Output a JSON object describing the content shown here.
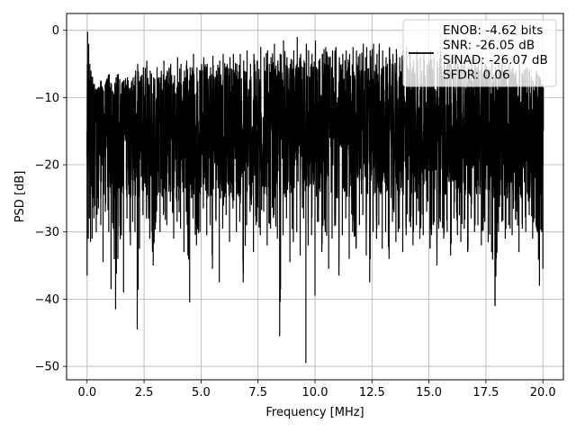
{
  "chart_data": {
    "type": "line",
    "title": "",
    "xlabel": "Frequency [MHz]",
    "ylabel": "PSD [dB]",
    "xlim": [
      -0.9,
      20.9
    ],
    "ylim": [
      -52,
      2.5
    ],
    "xticks": [
      0.0,
      2.5,
      5.0,
      7.5,
      10.0,
      12.5,
      15.0,
      17.5,
      20.0
    ],
    "xtick_labels": [
      "0.0",
      "2.5",
      "5.0",
      "7.5",
      "10.0",
      "12.5",
      "15.0",
      "17.5",
      "20.0"
    ],
    "yticks": [
      0,
      -10,
      -20,
      -30,
      -40,
      -50
    ],
    "ytick_labels": [
      "0",
      "−10",
      "−20",
      "−30",
      "−40",
      "−50"
    ],
    "grid": true,
    "legend_position": "top-right",
    "legend_entries": [
      "ENOB: -4.62 bits",
      "SNR: -26.05 dB",
      "SINAD: -26.07 dB",
      "SFDR: 0.06"
    ],
    "series": [
      {
        "color": "#000000",
        "x_range": [
          0.0,
          20.0
        ],
        "typical_range": [
          -25,
          -5
        ],
        "x": [
          0.0,
          0.05,
          0.1,
          0.15,
          0.22,
          0.3,
          0.4,
          0.5,
          0.6,
          0.7,
          0.8,
          0.95,
          1.05,
          1.15,
          1.25,
          1.35,
          1.5,
          1.6,
          1.75,
          1.9,
          2.0,
          2.1,
          2.2,
          2.3,
          2.45,
          2.6,
          2.75,
          2.9,
          3.05,
          3.2,
          3.35,
          3.5,
          3.65,
          3.8,
          3.95,
          4.1,
          4.25,
          4.35,
          4.5,
          4.65,
          4.8,
          4.95,
          5.1,
          5.25,
          5.4,
          5.5,
          5.65,
          5.8,
          5.95,
          6.1,
          6.25,
          6.4,
          6.55,
          6.7,
          6.85,
          7.0,
          7.15,
          7.3,
          7.45,
          7.6,
          7.75,
          7.9,
          8.05,
          8.2,
          8.35,
          8.45,
          8.6,
          8.75,
          8.9,
          9.05,
          9.2,
          9.35,
          9.5,
          9.6,
          9.7,
          9.85,
          10.0,
          10.15,
          10.3,
          10.45,
          10.6,
          10.75,
          10.9,
          11.05,
          11.2,
          11.35,
          11.5,
          11.65,
          11.8,
          11.95,
          12.1,
          12.25,
          12.4,
          12.55,
          12.7,
          12.8,
          12.95,
          13.1,
          13.25,
          13.4,
          13.55,
          13.7,
          13.85,
          14.0,
          14.15,
          14.3,
          14.45,
          14.6,
          14.75,
          14.9,
          15.05,
          15.2,
          15.35,
          15.5,
          15.65,
          15.8,
          15.95,
          16.1,
          16.25,
          16.4,
          16.55,
          16.7,
          16.85,
          17.0,
          17.15,
          17.3,
          17.45,
          17.6,
          17.75,
          17.9,
          18.05,
          18.2,
          18.35,
          18.5,
          18.65,
          18.8,
          18.95,
          19.1,
          19.25,
          19.4,
          19.55,
          19.7,
          19.85,
          19.95,
          20.0
        ],
        "y_max": [
          -0.2,
          -2.0,
          -5.0,
          -6.0,
          -7.0,
          -8.0,
          -9.0,
          -8.5,
          -7.5,
          -9.0,
          -8.0,
          -6.5,
          -8.0,
          -9.5,
          -7.0,
          -6.5,
          -8.0,
          -7.5,
          -7.0,
          -8.5,
          -7.0,
          -6.5,
          -5.0,
          -7.5,
          -5.5,
          -4.5,
          -6.0,
          -7.0,
          -5.5,
          -7.0,
          -4.5,
          -6.0,
          -5.0,
          -7.5,
          -4.0,
          -5.0,
          -6.0,
          -4.5,
          -5.5,
          -3.5,
          -5.5,
          -6.0,
          -4.0,
          -5.0,
          -5.5,
          -3.8,
          -6.0,
          -4.5,
          -3.5,
          -5.5,
          -4.0,
          -3.5,
          -5.0,
          -3.5,
          -4.5,
          -3.0,
          -5.0,
          -3.5,
          -4.5,
          -2.5,
          -4.0,
          -3.0,
          -4.0,
          -2.0,
          -4.5,
          -3.5,
          -1.5,
          -4.0,
          -5.0,
          -3.0,
          -1.0,
          -3.5,
          -4.5,
          -2.0,
          -3.0,
          -3.5,
          -1.5,
          -4.5,
          -3.5,
          -2.5,
          -4.0,
          -3.0,
          -2.5,
          -4.0,
          -3.5,
          -3.0,
          -3.5,
          -2.5,
          -3.0,
          -3.5,
          -2.0,
          -2.5,
          -3.0,
          -2.0,
          -3.5,
          -2.0,
          -3.0,
          -4.0,
          -2.5,
          -3.5,
          -2.8,
          -4.0,
          -3.0,
          -2.5,
          -3.5,
          -4.5,
          -3.0,
          -4.0,
          -3.5,
          -5.5,
          -3.0,
          -4.0,
          -4.5,
          -3.0,
          -4.5,
          -5.0,
          -4.0,
          -3.5,
          -5.0,
          -4.0,
          -4.5,
          -5.5,
          -4.0,
          -5.0,
          -4.5,
          -4.0,
          -5.0,
          -6.0,
          -4.5,
          -5.5,
          -5.0,
          -4.5,
          -6.5,
          -5.0,
          -5.5,
          -6.0,
          -5.0,
          -6.5,
          -5.5,
          -6.0,
          -7.5,
          -6.0,
          -7.0,
          -8.0,
          -8.5
        ],
        "y_min": [
          -36.5,
          -31.0,
          -28.0,
          -31.5,
          -31.0,
          -28.0,
          -30.0,
          -26.5,
          -29.0,
          -34.5,
          -27.0,
          -30.0,
          -38.5,
          -29.5,
          -41.5,
          -34.0,
          -30.5,
          -39.0,
          -28.0,
          -32.0,
          -28.5,
          -30.0,
          -44.5,
          -32.5,
          -27.5,
          -28.0,
          -31.0,
          -35.0,
          -27.0,
          -30.0,
          -27.5,
          -29.0,
          -25.5,
          -31.0,
          -28.5,
          -29.5,
          -33.0,
          -27.0,
          -40.5,
          -28.0,
          -32.0,
          -30.0,
          -26.5,
          -30.5,
          -29.0,
          -35.5,
          -28.0,
          -37.5,
          -29.5,
          -27.5,
          -31.5,
          -26.5,
          -30.0,
          -28.5,
          -37.5,
          -29.0,
          -27.0,
          -33.0,
          -28.5,
          -30.5,
          -27.0,
          -32.0,
          -29.5,
          -27.5,
          -31.0,
          -45.5,
          -30.5,
          -28.0,
          -34.5,
          -31.5,
          -30.0,
          -33.5,
          -28.0,
          -49.5,
          -32.0,
          -30.5,
          -39.5,
          -28.5,
          -33.0,
          -30.0,
          -35.5,
          -31.0,
          -29.0,
          -36.5,
          -30.5,
          -28.0,
          -34.0,
          -30.0,
          -32.5,
          -29.0,
          -27.5,
          -33.5,
          -37.5,
          -30.0,
          -31.0,
          -29.0,
          -32.5,
          -30.0,
          -34.0,
          -28.5,
          -31.5,
          -29.5,
          -33.0,
          -30.5,
          -28.5,
          -32.0,
          -29.0,
          -31.0,
          -30.5,
          -27.0,
          -32.5,
          -29.0,
          -35.0,
          -28.5,
          -31.0,
          -30.0,
          -33.5,
          -28.0,
          -30.5,
          -31.5,
          -29.5,
          -33.0,
          -28.0,
          -30.0,
          -29.0,
          -32.0,
          -28.5,
          -31.5,
          -33.0,
          -41.0,
          -30.0,
          -28.5,
          -31.0,
          -29.0,
          -30.5,
          -28.0,
          -33.0,
          -29.5,
          -30.0,
          -27.5,
          -31.0,
          -29.0,
          -38.0,
          -30.0,
          -35.5
        ]
      }
    ]
  }
}
